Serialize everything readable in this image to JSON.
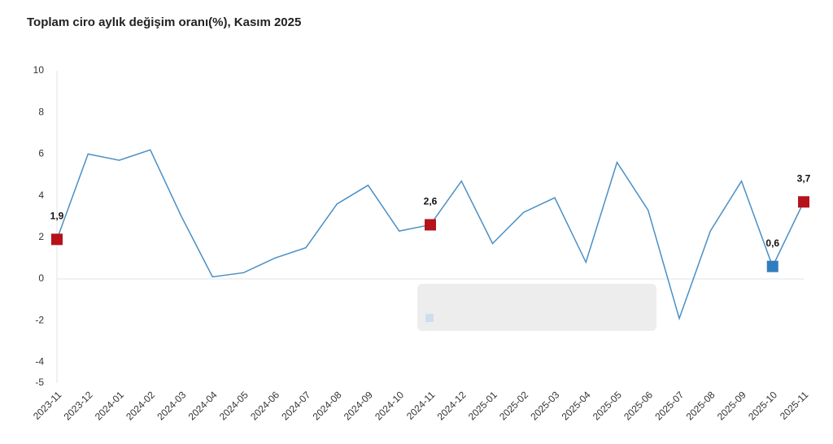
{
  "chart_data": {
    "type": "line",
    "title": "Toplam ciro aylık değişim oranı(%), Kasım 2025",
    "categories": [
      "2023-11",
      "2023-12",
      "2024-01",
      "2024-02",
      "2024-03",
      "2024-04",
      "2024-05",
      "2024-06",
      "2024-07",
      "2024-08",
      "2024-09",
      "2024-10",
      "2024-11",
      "2024-12",
      "2025-01",
      "2025-02",
      "2025-03",
      "2025-04",
      "2025-05",
      "2025-06",
      "2025-07",
      "2025-08",
      "2025-09",
      "2025-10",
      "2025-11"
    ],
    "values": [
      1.9,
      6.0,
      5.7,
      6.2,
      3.0,
      0.1,
      0.3,
      1.0,
      1.5,
      3.6,
      4.5,
      2.3,
      2.6,
      4.7,
      1.7,
      3.2,
      3.9,
      0.8,
      5.6,
      3.3,
      -1.9,
      2.3,
      4.7,
      0.6,
      3.7
    ],
    "value_labels": [
      "1,9",
      null,
      null,
      null,
      null,
      null,
      null,
      null,
      null,
      null,
      null,
      null,
      "2,6",
      null,
      null,
      null,
      null,
      null,
      null,
      null,
      null,
      null,
      null,
      "0,6",
      "3,7"
    ],
    "marker_colors": [
      "#b5121b",
      null,
      null,
      null,
      null,
      null,
      null,
      null,
      null,
      null,
      null,
      null,
      "#b5121b",
      null,
      null,
      null,
      null,
      null,
      null,
      null,
      null,
      null,
      null,
      "#2f7dbf",
      "#b5121b"
    ],
    "color": "#4a8fc4",
    "ylim": [
      -5,
      10
    ],
    "yticks": [
      10,
      8,
      6,
      4,
      2,
      0,
      -2,
      -4,
      -5
    ]
  }
}
